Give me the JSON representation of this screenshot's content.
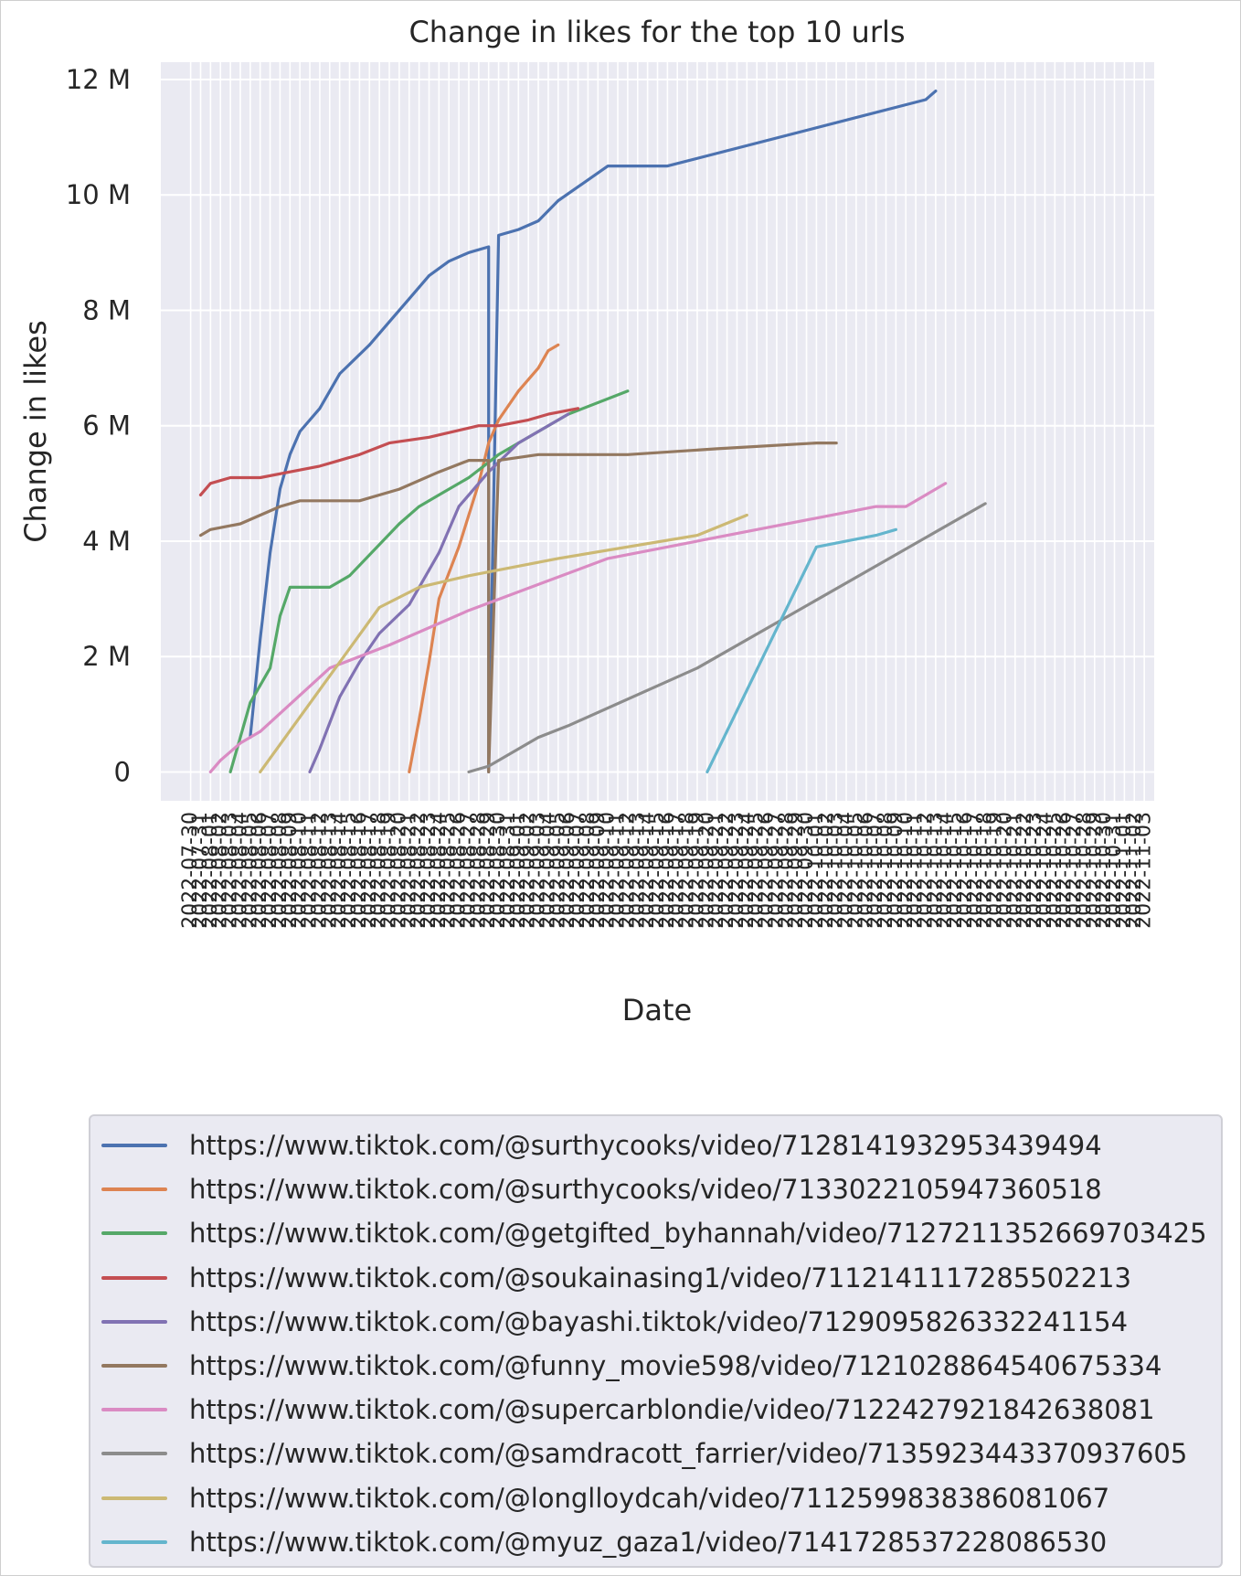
{
  "chart_data": {
    "type": "line",
    "title": "Change in likes for the top 10 urls",
    "xlabel": "Date",
    "ylabel": "Change in likes",
    "ylim": [
      -500000,
      12300000
    ],
    "yticks": [
      0,
      2000000,
      4000000,
      6000000,
      8000000,
      10000000,
      12000000
    ],
    "ytick_labels": [
      "0",
      "2 M",
      "4 M",
      "6 M",
      "8 M",
      "10 M",
      "12 M"
    ],
    "x_range": [
      "2022-07-27",
      "2022-11-04"
    ],
    "x_first_tick": "2022-07-30",
    "x_last_tick": "2022-11-03",
    "grid": true,
    "legend_position": "below",
    "series": [
      {
        "name": "https://www.tiktok.com/@surthycooks/video/7128141932953439494",
        "color": "#4c72b0",
        "x": [
          "2022-08-05",
          "2022-08-06",
          "2022-08-07",
          "2022-08-08",
          "2022-08-09",
          "2022-08-10",
          "2022-08-12",
          "2022-08-14",
          "2022-08-17",
          "2022-08-19",
          "2022-08-21",
          "2022-08-23",
          "2022-08-25",
          "2022-08-27",
          "2022-08-29",
          "2022-08-29",
          "2022-08-30",
          "2022-09-01",
          "2022-09-03",
          "2022-09-05",
          "2022-09-10",
          "2022-09-16",
          "2022-10-12",
          "2022-10-13"
        ],
        "y": [
          600000,
          2300000,
          3800000,
          4900000,
          5500000,
          5900000,
          6300000,
          6900000,
          7400000,
          7800000,
          8200000,
          8600000,
          8850000,
          9000000,
          9100000,
          0,
          9300000,
          9400000,
          9550000,
          9900000,
          10500000,
          10500000,
          11650000,
          11800000
        ]
      },
      {
        "name": "https://www.tiktok.com/@surthycooks/video/7133022105947360518",
        "color": "#dd8452",
        "x": [
          "2022-08-21",
          "2022-08-22",
          "2022-08-23",
          "2022-08-24",
          "2022-08-26",
          "2022-08-28",
          "2022-08-29",
          "2022-08-30",
          "2022-09-01",
          "2022-09-03",
          "2022-09-04",
          "2022-09-05"
        ],
        "y": [
          0,
          900000,
          1900000,
          3000000,
          3900000,
          5000000,
          5700000,
          6100000,
          6600000,
          7000000,
          7300000,
          7400000
        ]
      },
      {
        "name": "https://www.tiktok.com/@getgifted_byhannah/video/7127211352669703425",
        "color": "#55a868",
        "x": [
          "2022-08-03",
          "2022-08-04",
          "2022-08-05",
          "2022-08-07",
          "2022-08-08",
          "2022-08-09",
          "2022-08-13",
          "2022-08-15",
          "2022-08-20",
          "2022-08-22",
          "2022-08-24",
          "2022-08-27",
          "2022-08-30",
          "2022-09-06",
          "2022-09-12"
        ],
        "y": [
          0,
          600000,
          1200000,
          1800000,
          2700000,
          3200000,
          3200000,
          3400000,
          4300000,
          4600000,
          4800000,
          5100000,
          5500000,
          6200000,
          6600000
        ]
      },
      {
        "name": "https://www.tiktok.com/@soukainasing1/video/7112141117285502213",
        "color": "#c44e52",
        "x": [
          "2022-07-31",
          "2022-08-01",
          "2022-08-03",
          "2022-08-06",
          "2022-08-09",
          "2022-08-12",
          "2022-08-16",
          "2022-08-19",
          "2022-08-23",
          "2022-08-28",
          "2022-08-30",
          "2022-09-02",
          "2022-09-04",
          "2022-09-07"
        ],
        "y": [
          4800000,
          5000000,
          5100000,
          5100000,
          5200000,
          5300000,
          5500000,
          5700000,
          5800000,
          6000000,
          6000000,
          6100000,
          6200000,
          6300000
        ]
      },
      {
        "name": "https://www.tiktok.com/@bayashi.tiktok/video/7129095826332241154",
        "color": "#8172b3",
        "x": [
          "2022-08-11",
          "2022-08-12",
          "2022-08-14",
          "2022-08-16",
          "2022-08-18",
          "2022-08-21",
          "2022-08-24",
          "2022-08-26",
          "2022-08-29",
          "2022-09-01",
          "2022-09-06"
        ],
        "y": [
          0,
          400000,
          1300000,
          1900000,
          2400000,
          2900000,
          3800000,
          4600000,
          5200000,
          5700000,
          6200000
        ]
      },
      {
        "name": "https://www.tiktok.com/@funny_movie598/video/7121028864540675334",
        "color": "#937860",
        "x": [
          "2022-07-31",
          "2022-08-01",
          "2022-08-04",
          "2022-08-08",
          "2022-08-10",
          "2022-08-16",
          "2022-08-20",
          "2022-08-24",
          "2022-08-27",
          "2022-08-29",
          "2022-08-29",
          "2022-08-30",
          "2022-09-03",
          "2022-09-12",
          "2022-09-21",
          "2022-10-01",
          "2022-10-03"
        ],
        "y": [
          4100000,
          4200000,
          4300000,
          4600000,
          4700000,
          4700000,
          4900000,
          5200000,
          5400000,
          5400000,
          0,
          5400000,
          5500000,
          5500000,
          5600000,
          5700000,
          5700000
        ]
      },
      {
        "name": "https://www.tiktok.com/@supercarblondie/video/7122427921842638081",
        "color": "#da8bc3",
        "x": [
          "2022-08-01",
          "2022-08-02",
          "2022-08-04",
          "2022-08-06",
          "2022-08-13",
          "2022-08-19",
          "2022-08-27",
          "2022-09-10",
          "2022-10-07",
          "2022-10-10",
          "2022-10-14"
        ],
        "y": [
          0,
          200000,
          500000,
          700000,
          1800000,
          2200000,
          2800000,
          3700000,
          4600000,
          4600000,
          5000000
        ]
      },
      {
        "name": "https://www.tiktok.com/@samdracott_farrier/video/7135923443370937605",
        "color": "#8c8c8c",
        "x": [
          "2022-08-27",
          "2022-08-29",
          "2022-09-01",
          "2022-09-03",
          "2022-09-06",
          "2022-09-19",
          "2022-10-18"
        ],
        "y": [
          0,
          100000,
          400000,
          600000,
          800000,
          1800000,
          4650000
        ]
      },
      {
        "name": "https://www.tiktok.com/@longlloydcah/video/7112599838386081067",
        "color": "#ccb974",
        "x": [
          "2022-08-06",
          "2022-08-18",
          "2022-08-22",
          "2022-08-27",
          "2022-09-05",
          "2022-09-19",
          "2022-09-24"
        ],
        "y": [
          0,
          2850000,
          3200000,
          3400000,
          3700000,
          4100000,
          4450000
        ]
      },
      {
        "name": "https://www.tiktok.com/@myuz_gaza1/video/7141728537228086530",
        "color": "#64b5cd",
        "x": [
          "2022-09-20",
          "2022-10-01",
          "2022-10-04",
          "2022-10-07",
          "2022-10-09"
        ],
        "y": [
          0,
          3900000,
          4000000,
          4100000,
          4200000
        ]
      }
    ]
  }
}
